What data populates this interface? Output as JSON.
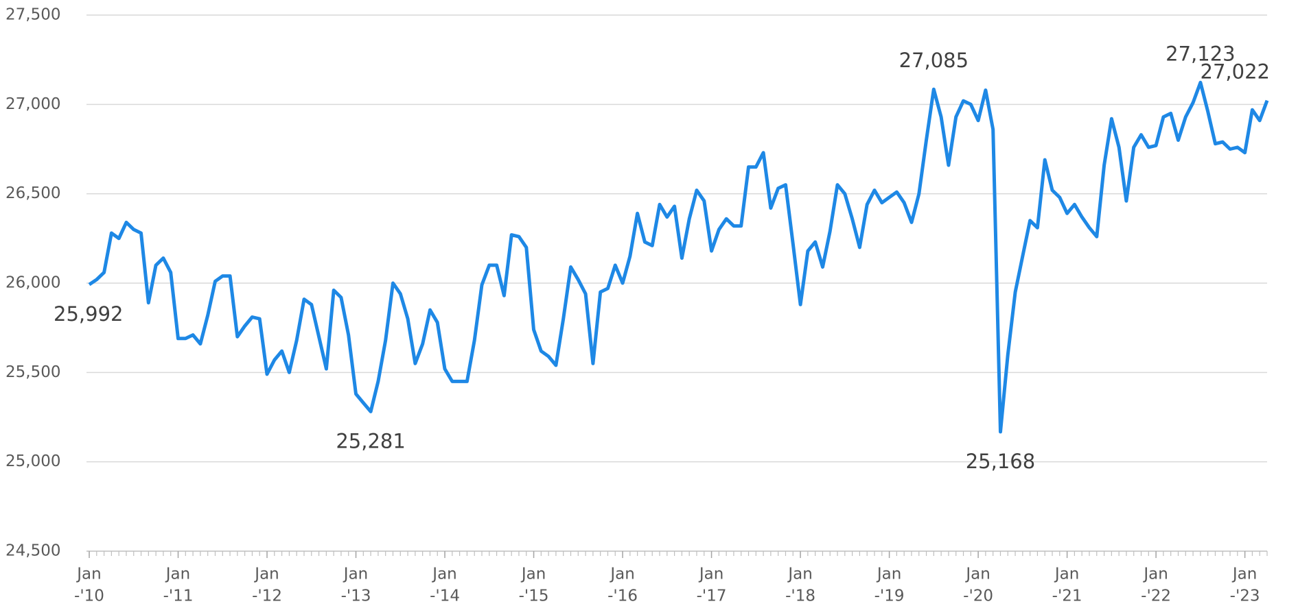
{
  "chart_data": {
    "type": "line",
    "x": [
      "2010-01",
      "2010-02",
      "2010-03",
      "2010-04",
      "2010-05",
      "2010-06",
      "2010-07",
      "2010-08",
      "2010-09",
      "2010-10",
      "2010-11",
      "2010-12",
      "2011-01",
      "2011-02",
      "2011-03",
      "2011-04",
      "2011-05",
      "2011-06",
      "2011-07",
      "2011-08",
      "2011-09",
      "2011-10",
      "2011-11",
      "2011-12",
      "2012-01",
      "2012-02",
      "2012-03",
      "2012-04",
      "2012-05",
      "2012-06",
      "2012-07",
      "2012-08",
      "2012-09",
      "2012-10",
      "2012-11",
      "2012-12",
      "2013-01",
      "2013-02",
      "2013-03",
      "2013-04",
      "2013-05",
      "2013-06",
      "2013-07",
      "2013-08",
      "2013-09",
      "2013-10",
      "2013-11",
      "2013-12",
      "2014-01",
      "2014-02",
      "2014-03",
      "2014-04",
      "2014-05",
      "2014-06",
      "2014-07",
      "2014-08",
      "2014-09",
      "2014-10",
      "2014-11",
      "2014-12",
      "2015-01",
      "2015-02",
      "2015-03",
      "2015-04",
      "2015-05",
      "2015-06",
      "2015-07",
      "2015-08",
      "2015-09",
      "2015-10",
      "2015-11",
      "2015-12",
      "2016-01",
      "2016-02",
      "2016-03",
      "2016-04",
      "2016-05",
      "2016-06",
      "2016-07",
      "2016-08",
      "2016-09",
      "2016-10",
      "2016-11",
      "2016-12",
      "2017-01",
      "2017-02",
      "2017-03",
      "2017-04",
      "2017-05",
      "2017-06",
      "2017-07",
      "2017-08",
      "2017-09",
      "2017-10",
      "2017-11",
      "2017-12",
      "2018-01",
      "2018-02",
      "2018-03",
      "2018-04",
      "2018-05",
      "2018-06",
      "2018-07",
      "2018-08",
      "2018-09",
      "2018-10",
      "2018-11",
      "2018-12",
      "2019-01",
      "2019-02",
      "2019-03",
      "2019-04",
      "2019-05",
      "2019-06",
      "2019-07",
      "2019-08",
      "2019-09",
      "2019-10",
      "2019-11",
      "2019-12",
      "2020-01",
      "2020-02",
      "2020-03",
      "2020-04",
      "2020-05",
      "2020-06",
      "2020-07",
      "2020-08",
      "2020-09",
      "2020-10",
      "2020-11",
      "2020-12",
      "2021-01",
      "2021-02",
      "2021-03",
      "2021-04",
      "2021-05",
      "2021-06",
      "2021-07",
      "2021-08",
      "2021-09",
      "2021-10",
      "2021-11",
      "2021-12",
      "2022-01",
      "2022-02",
      "2022-03",
      "2022-04",
      "2022-05",
      "2022-06",
      "2022-07",
      "2022-08",
      "2022-09",
      "2022-10",
      "2022-11",
      "2022-12",
      "2023-01",
      "2023-02",
      "2023-03",
      "2023-04"
    ],
    "series": [
      {
        "color": "#1e88e5",
        "values": [
          25992,
          26020,
          26060,
          26280,
          26250,
          26340,
          26300,
          26280,
          25890,
          26100,
          26140,
          26060,
          25690,
          25690,
          25710,
          25660,
          25820,
          26010,
          26040,
          26040,
          25700,
          25760,
          25810,
          25800,
          25490,
          25570,
          25620,
          25500,
          25680,
          25910,
          25880,
          25700,
          25520,
          25960,
          25920,
          25710,
          25380,
          25330,
          25281,
          25450,
          25680,
          26000,
          25940,
          25800,
          25550,
          25660,
          25850,
          25780,
          25520,
          25450,
          25450,
          25450,
          25680,
          25990,
          26100,
          26100,
          25930,
          26270,
          26260,
          26200,
          25740,
          25620,
          25590,
          25540,
          25800,
          26090,
          26020,
          25940,
          25550,
          25950,
          25970,
          26100,
          26000,
          26150,
          26390,
          26230,
          26210,
          26440,
          26370,
          26430,
          26140,
          26360,
          26520,
          26460,
          26180,
          26300,
          26360,
          26320,
          26320,
          26650,
          26650,
          26730,
          26420,
          26530,
          26550,
          26220,
          25880,
          26180,
          26230,
          26090,
          26290,
          26550,
          26500,
          26360,
          26200,
          26440,
          26520,
          26450,
          26480,
          26510,
          26450,
          26340,
          26500,
          26800,
          27085,
          26930,
          26660,
          26930,
          27020,
          27000,
          26910,
          27080,
          26860,
          25168,
          25600,
          25950,
          26150,
          26350,
          26310,
          26690,
          26520,
          26480,
          26390,
          26440,
          26370,
          26310,
          26260,
          26660,
          26920,
          26760,
          26460,
          26760,
          26830,
          26760,
          26770,
          26930,
          26950,
          26800,
          26930,
          27010,
          27123,
          26960,
          26780,
          26790,
          26750,
          26760,
          26730,
          26970,
          26910,
          27022
        ],
        "value_labels": [
          "25,992",
          null,
          null,
          null,
          null,
          null,
          null,
          null,
          null,
          null,
          null,
          null,
          null,
          null,
          null,
          null,
          null,
          null,
          null,
          null,
          null,
          null,
          null,
          null,
          null,
          null,
          null,
          null,
          null,
          null,
          null,
          null,
          null,
          null,
          null,
          null,
          null,
          null,
          "25,281",
          null,
          null,
          null,
          null,
          null,
          null,
          null,
          null,
          null,
          null,
          null,
          null,
          null,
          null,
          null,
          null,
          null,
          null,
          null,
          null,
          null,
          null,
          null,
          null,
          null,
          null,
          null,
          null,
          null,
          null,
          null,
          null,
          null,
          null,
          null,
          null,
          null,
          null,
          null,
          null,
          null,
          null,
          null,
          null,
          null,
          null,
          null,
          null,
          null,
          null,
          null,
          null,
          null,
          null,
          null,
          null,
          null,
          null,
          null,
          null,
          null,
          null,
          null,
          null,
          null,
          null,
          null,
          null,
          null,
          null,
          null,
          null,
          null,
          null,
          null,
          "27,085",
          null,
          null,
          null,
          null,
          null,
          null,
          null,
          null,
          "25,168",
          null,
          null,
          null,
          null,
          null,
          null,
          null,
          null,
          null,
          null,
          null,
          null,
          null,
          null,
          null,
          null,
          null,
          null,
          null,
          null,
          null,
          null,
          null,
          null,
          null,
          null,
          "27,123",
          null,
          null,
          null,
          null,
          null,
          null,
          null,
          null,
          "27,022"
        ]
      }
    ],
    "ylim": [
      24500,
      27500
    ],
    "yticks": [
      {
        "value": 24500,
        "label": "24,500"
      },
      {
        "value": 25000,
        "label": "25,000"
      },
      {
        "value": 25500,
        "label": "25,500"
      },
      {
        "value": 26000,
        "label": "26,000"
      },
      {
        "value": 26500,
        "label": "26,500"
      },
      {
        "value": 27000,
        "label": "27,000"
      },
      {
        "value": 27500,
        "label": "27,500"
      }
    ],
    "xticks": [
      {
        "value": "2010-01",
        "label": [
          "Jan",
          "-'10"
        ]
      },
      {
        "value": "2011-01",
        "label": [
          "Jan",
          "-'11"
        ]
      },
      {
        "value": "2012-01",
        "label": [
          "Jan",
          "-'12"
        ]
      },
      {
        "value": "2013-01",
        "label": [
          "Jan",
          "-'13"
        ]
      },
      {
        "value": "2014-01",
        "label": [
          "Jan",
          "-'14"
        ]
      },
      {
        "value": "2015-01",
        "label": [
          "Jan",
          "-'15"
        ]
      },
      {
        "value": "2016-01",
        "label": [
          "Jan",
          "-'16"
        ]
      },
      {
        "value": "2017-01",
        "label": [
          "Jan",
          "-'17"
        ]
      },
      {
        "value": "2018-01",
        "label": [
          "Jan",
          "-'18"
        ]
      },
      {
        "value": "2019-01",
        "label": [
          "Jan",
          "-'19"
        ]
      },
      {
        "value": "2020-01",
        "label": [
          "Jan",
          "-'20"
        ]
      },
      {
        "value": "2021-01",
        "label": [
          "Jan",
          "-'21"
        ]
      },
      {
        "value": "2022-01",
        "label": [
          "Jan",
          "-'22"
        ]
      },
      {
        "value": "2023-01",
        "label": [
          "Jan",
          "-'23"
        ]
      }
    ],
    "grid": true
  }
}
